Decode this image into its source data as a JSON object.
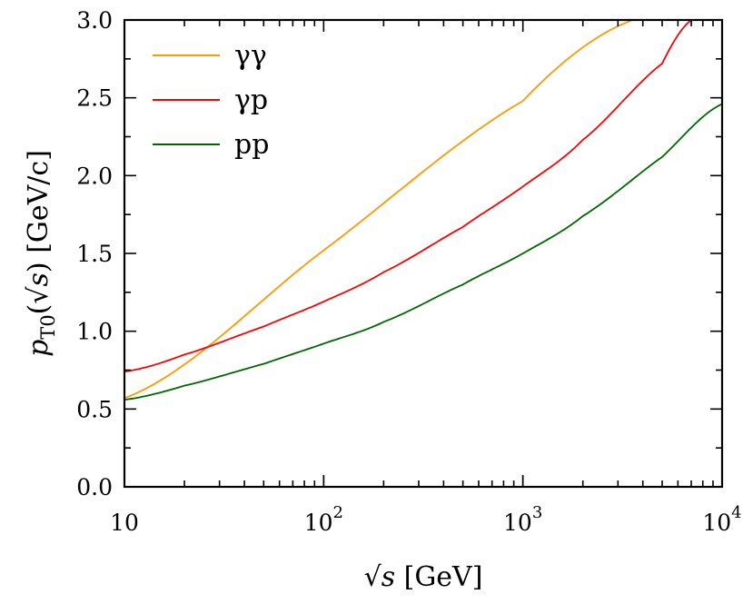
{
  "chart_data": {
    "type": "line",
    "title": "",
    "xlabel": {
      "sqrt": "√",
      "var": "s",
      "unit": " [GeV]"
    },
    "ylabel": {
      "var": "p",
      "sub": "T0",
      "open": "(",
      "sqrt": "√",
      "s": "s",
      "close": ")",
      "unit": " [GeV/c]"
    },
    "x_scale": "log",
    "xlim": [
      10,
      10000
    ],
    "ylim": [
      0,
      3.0
    ],
    "grid": false,
    "legend_position": "top-left",
    "x_ticks": [
      {
        "value": 10,
        "label": "10",
        "exp": ""
      },
      {
        "value": 100,
        "label": "10",
        "exp": "2"
      },
      {
        "value": 1000,
        "label": "10",
        "exp": "3"
      },
      {
        "value": 10000,
        "label": "10",
        "exp": "4"
      }
    ],
    "y_ticks": [
      {
        "value": 0.0,
        "label": "0.0"
      },
      {
        "value": 0.5,
        "label": "0.5"
      },
      {
        "value": 1.0,
        "label": "1.0"
      },
      {
        "value": 1.5,
        "label": "1.5"
      },
      {
        "value": 2.0,
        "label": "2.0"
      },
      {
        "value": 2.5,
        "label": "2.5"
      },
      {
        "value": 3.0,
        "label": "3.0"
      }
    ],
    "series": [
      {
        "name": "γγ",
        "color": "#ff9900",
        "x": [
          10,
          100,
          1000,
          3550
        ],
        "y": [
          0.57,
          1.52,
          2.48,
          3.0
        ]
      },
      {
        "name": "γp",
        "color": "#ff0000",
        "x": [
          10,
          20,
          50,
          100,
          200,
          500,
          1000,
          2000,
          5000,
          7000
        ],
        "y": [
          0.74,
          0.85,
          1.03,
          1.19,
          1.38,
          1.67,
          1.93,
          2.23,
          2.72,
          3.0
        ]
      },
      {
        "name": "pp",
        "color": "#006600",
        "x": [
          10,
          20,
          50,
          100,
          200,
          500,
          1000,
          2000,
          5000,
          10000
        ],
        "y": [
          0.56,
          0.65,
          0.79,
          0.92,
          1.06,
          1.3,
          1.5,
          1.74,
          2.12,
          2.46
        ]
      }
    ]
  }
}
